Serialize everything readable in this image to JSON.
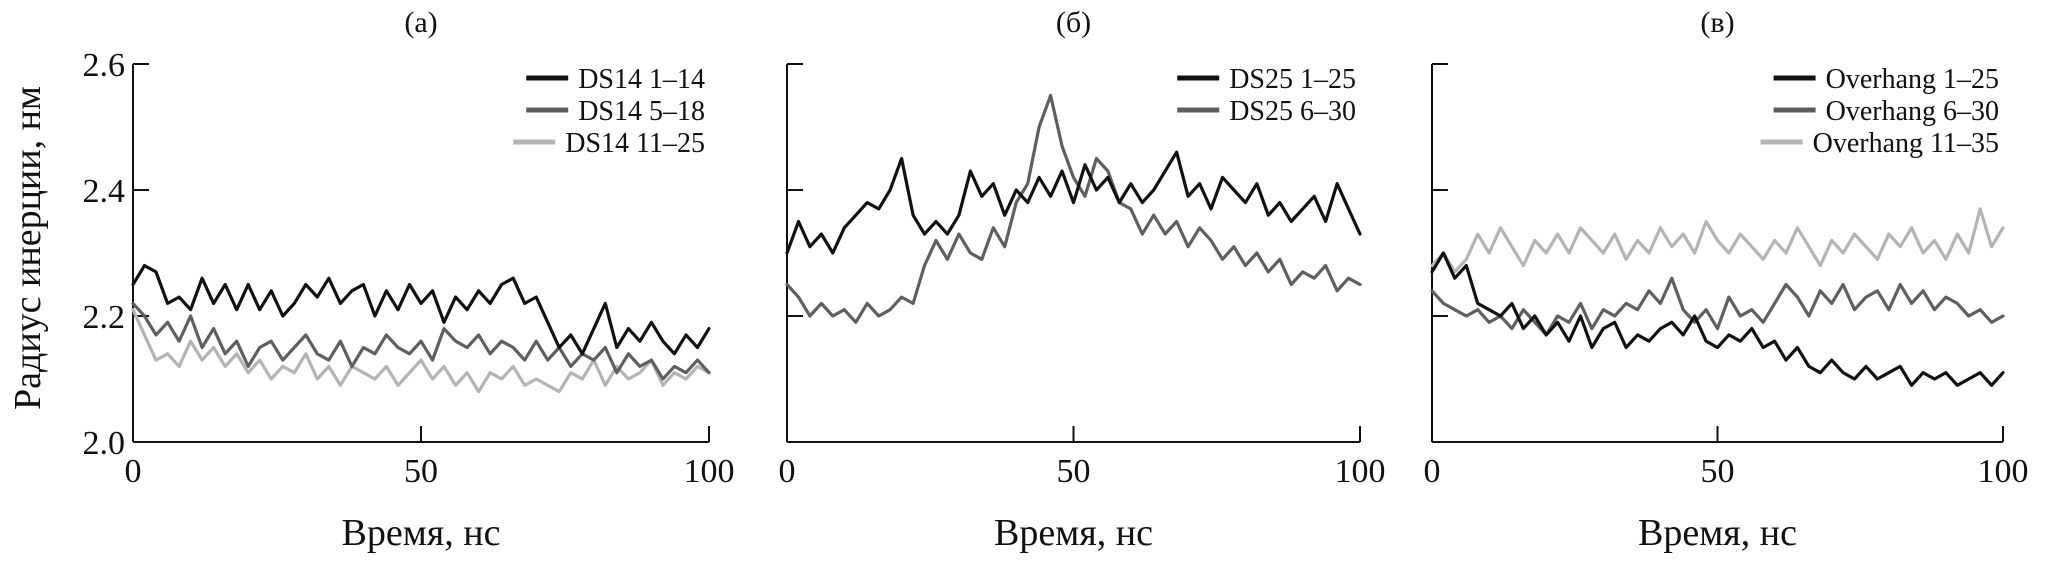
{
  "figure": {
    "ylabel": "Радиус инерции, нм",
    "xlabel": "Время, нс"
  },
  "chart_data": [
    {
      "type": "line",
      "panel_label": "(а)",
      "xlabel": "Время, нс",
      "ylabel": "Радиус инерции, нм",
      "xlim": [
        0,
        100
      ],
      "ylim": [
        2.0,
        2.6
      ],
      "xticks": [
        0,
        50,
        100
      ],
      "yticks": [
        2.0,
        2.2,
        2.4,
        2.6
      ],
      "show_ytick_labels": true,
      "grid": false,
      "legend_position": "top-right",
      "series": [
        {
          "name": "DS14 1–14",
          "color": "#111111",
          "x": [
            0,
            2,
            4,
            6,
            8,
            10,
            12,
            14,
            16,
            18,
            20,
            22,
            24,
            26,
            28,
            30,
            32,
            34,
            36,
            38,
            40,
            42,
            44,
            46,
            48,
            50,
            52,
            54,
            56,
            58,
            60,
            62,
            64,
            66,
            68,
            70,
            72,
            74,
            76,
            78,
            80,
            82,
            84,
            86,
            88,
            90,
            92,
            94,
            96,
            98,
            100
          ],
          "y": [
            2.25,
            2.28,
            2.27,
            2.22,
            2.23,
            2.21,
            2.26,
            2.22,
            2.25,
            2.21,
            2.25,
            2.21,
            2.24,
            2.2,
            2.22,
            2.25,
            2.23,
            2.26,
            2.22,
            2.24,
            2.25,
            2.2,
            2.24,
            2.21,
            2.25,
            2.22,
            2.24,
            2.19,
            2.23,
            2.21,
            2.24,
            2.22,
            2.25,
            2.26,
            2.22,
            2.23,
            2.19,
            2.15,
            2.17,
            2.14,
            2.18,
            2.22,
            2.15,
            2.18,
            2.16,
            2.19,
            2.16,
            2.14,
            2.17,
            2.15,
            2.18
          ]
        },
        {
          "name": "DS14 5–18",
          "color": "#5f5f5f",
          "x": [
            0,
            2,
            4,
            6,
            8,
            10,
            12,
            14,
            16,
            18,
            20,
            22,
            24,
            26,
            28,
            30,
            32,
            34,
            36,
            38,
            40,
            42,
            44,
            46,
            48,
            50,
            52,
            54,
            56,
            58,
            60,
            62,
            64,
            66,
            68,
            70,
            72,
            74,
            76,
            78,
            80,
            82,
            84,
            86,
            88,
            90,
            92,
            94,
            96,
            98,
            100
          ],
          "y": [
            2.22,
            2.2,
            2.17,
            2.19,
            2.16,
            2.2,
            2.15,
            2.18,
            2.14,
            2.16,
            2.12,
            2.15,
            2.16,
            2.13,
            2.15,
            2.17,
            2.14,
            2.13,
            2.16,
            2.12,
            2.15,
            2.14,
            2.17,
            2.15,
            2.14,
            2.16,
            2.13,
            2.18,
            2.16,
            2.15,
            2.17,
            2.14,
            2.16,
            2.15,
            2.13,
            2.16,
            2.13,
            2.15,
            2.12,
            2.14,
            2.13,
            2.15,
            2.11,
            2.14,
            2.12,
            2.13,
            2.1,
            2.12,
            2.11,
            2.13,
            2.11
          ]
        },
        {
          "name": "DS14 11–25",
          "color": "#b4b4b4",
          "x": [
            0,
            2,
            4,
            6,
            8,
            10,
            12,
            14,
            16,
            18,
            20,
            22,
            24,
            26,
            28,
            30,
            32,
            34,
            36,
            38,
            40,
            42,
            44,
            46,
            48,
            50,
            52,
            54,
            56,
            58,
            60,
            62,
            64,
            66,
            68,
            70,
            72,
            74,
            76,
            78,
            80,
            82,
            84,
            86,
            88,
            90,
            92,
            94,
            96,
            98,
            100
          ],
          "y": [
            2.21,
            2.17,
            2.13,
            2.14,
            2.12,
            2.16,
            2.13,
            2.15,
            2.12,
            2.14,
            2.11,
            2.13,
            2.1,
            2.12,
            2.11,
            2.14,
            2.1,
            2.12,
            2.09,
            2.12,
            2.11,
            2.1,
            2.12,
            2.09,
            2.11,
            2.13,
            2.1,
            2.12,
            2.09,
            2.11,
            2.08,
            2.11,
            2.1,
            2.12,
            2.09,
            2.1,
            2.09,
            2.08,
            2.11,
            2.1,
            2.13,
            2.09,
            2.12,
            2.1,
            2.11,
            2.13,
            2.09,
            2.11,
            2.1,
            2.12,
            2.11
          ]
        }
      ]
    },
    {
      "type": "line",
      "panel_label": "(б)",
      "xlabel": "Время, нс",
      "xlim": [
        0,
        100
      ],
      "ylim": [
        2.0,
        2.6
      ],
      "xticks": [
        0,
        50,
        100
      ],
      "yticks": [
        2.0,
        2.2,
        2.4,
        2.6
      ],
      "show_ytick_labels": false,
      "grid": false,
      "legend_position": "top-right",
      "series": [
        {
          "name": "DS25 1–25",
          "color": "#111111",
          "x": [
            0,
            2,
            4,
            6,
            8,
            10,
            12,
            14,
            16,
            18,
            20,
            22,
            24,
            26,
            28,
            30,
            32,
            34,
            36,
            38,
            40,
            42,
            44,
            46,
            48,
            50,
            52,
            54,
            56,
            58,
            60,
            62,
            64,
            66,
            68,
            70,
            72,
            74,
            76,
            78,
            80,
            82,
            84,
            86,
            88,
            90,
            92,
            94,
            96,
            98,
            100
          ],
          "y": [
            2.3,
            2.35,
            2.31,
            2.33,
            2.3,
            2.34,
            2.36,
            2.38,
            2.37,
            2.4,
            2.45,
            2.36,
            2.33,
            2.35,
            2.33,
            2.36,
            2.43,
            2.39,
            2.41,
            2.36,
            2.4,
            2.38,
            2.42,
            2.39,
            2.43,
            2.38,
            2.44,
            2.4,
            2.42,
            2.38,
            2.41,
            2.38,
            2.4,
            2.43,
            2.46,
            2.39,
            2.41,
            2.37,
            2.42,
            2.4,
            2.38,
            2.41,
            2.36,
            2.38,
            2.35,
            2.37,
            2.39,
            2.35,
            2.41,
            2.37,
            2.33
          ]
        },
        {
          "name": "DS25 6–30",
          "color": "#5f5f5f",
          "x": [
            0,
            2,
            4,
            6,
            8,
            10,
            12,
            14,
            16,
            18,
            20,
            22,
            24,
            26,
            28,
            30,
            32,
            34,
            36,
            38,
            40,
            42,
            44,
            46,
            48,
            50,
            52,
            54,
            56,
            58,
            60,
            62,
            64,
            66,
            68,
            70,
            72,
            74,
            76,
            78,
            80,
            82,
            84,
            86,
            88,
            90,
            92,
            94,
            96,
            98,
            100
          ],
          "y": [
            2.25,
            2.23,
            2.2,
            2.22,
            2.2,
            2.21,
            2.19,
            2.22,
            2.2,
            2.21,
            2.23,
            2.22,
            2.28,
            2.32,
            2.29,
            2.33,
            2.3,
            2.29,
            2.34,
            2.31,
            2.38,
            2.41,
            2.5,
            2.55,
            2.47,
            2.42,
            2.39,
            2.45,
            2.43,
            2.38,
            2.37,
            2.33,
            2.36,
            2.33,
            2.35,
            2.31,
            2.34,
            2.32,
            2.29,
            2.31,
            2.28,
            2.3,
            2.27,
            2.29,
            2.25,
            2.27,
            2.26,
            2.28,
            2.24,
            2.26,
            2.25
          ]
        }
      ]
    },
    {
      "type": "line",
      "panel_label": "(в)",
      "xlabel": "Время, нс",
      "xlim": [
        0,
        100
      ],
      "ylim": [
        2.0,
        2.6
      ],
      "xticks": [
        0,
        50,
        100
      ],
      "yticks": [
        2.0,
        2.2,
        2.4,
        2.6
      ],
      "show_ytick_labels": false,
      "grid": false,
      "legend_position": "top-right",
      "series": [
        {
          "name": "Overhang 1–25",
          "color": "#111111",
          "x": [
            0,
            2,
            4,
            6,
            8,
            10,
            12,
            14,
            16,
            18,
            20,
            22,
            24,
            26,
            28,
            30,
            32,
            34,
            36,
            38,
            40,
            42,
            44,
            46,
            48,
            50,
            52,
            54,
            56,
            58,
            60,
            62,
            64,
            66,
            68,
            70,
            72,
            74,
            76,
            78,
            80,
            82,
            84,
            86,
            88,
            90,
            92,
            94,
            96,
            98,
            100
          ],
          "y": [
            2.27,
            2.3,
            2.26,
            2.28,
            2.22,
            2.21,
            2.2,
            2.22,
            2.18,
            2.2,
            2.17,
            2.19,
            2.16,
            2.2,
            2.15,
            2.18,
            2.19,
            2.15,
            2.17,
            2.16,
            2.18,
            2.19,
            2.17,
            2.2,
            2.16,
            2.15,
            2.17,
            2.16,
            2.18,
            2.15,
            2.16,
            2.13,
            2.15,
            2.12,
            2.11,
            2.13,
            2.11,
            2.1,
            2.12,
            2.1,
            2.11,
            2.12,
            2.09,
            2.11,
            2.1,
            2.11,
            2.09,
            2.1,
            2.11,
            2.09,
            2.11
          ]
        },
        {
          "name": "Overhang 6–30",
          "color": "#5f5f5f",
          "x": [
            0,
            2,
            4,
            6,
            8,
            10,
            12,
            14,
            16,
            18,
            20,
            22,
            24,
            26,
            28,
            30,
            32,
            34,
            36,
            38,
            40,
            42,
            44,
            46,
            48,
            50,
            52,
            54,
            56,
            58,
            60,
            62,
            64,
            66,
            68,
            70,
            72,
            74,
            76,
            78,
            80,
            82,
            84,
            86,
            88,
            90,
            92,
            94,
            96,
            98,
            100
          ],
          "y": [
            2.24,
            2.22,
            2.21,
            2.2,
            2.21,
            2.19,
            2.2,
            2.18,
            2.21,
            2.19,
            2.17,
            2.2,
            2.19,
            2.22,
            2.18,
            2.21,
            2.2,
            2.22,
            2.21,
            2.24,
            2.22,
            2.26,
            2.21,
            2.19,
            2.21,
            2.18,
            2.23,
            2.2,
            2.21,
            2.19,
            2.22,
            2.25,
            2.23,
            2.2,
            2.24,
            2.22,
            2.25,
            2.21,
            2.23,
            2.24,
            2.21,
            2.25,
            2.22,
            2.24,
            2.21,
            2.23,
            2.22,
            2.2,
            2.21,
            2.19,
            2.2
          ]
        },
        {
          "name": "Overhang 11–35",
          "color": "#b4b4b4",
          "x": [
            0,
            2,
            4,
            6,
            8,
            10,
            12,
            14,
            16,
            18,
            20,
            22,
            24,
            26,
            28,
            30,
            32,
            34,
            36,
            38,
            40,
            42,
            44,
            46,
            48,
            50,
            52,
            54,
            56,
            58,
            60,
            62,
            64,
            66,
            68,
            70,
            72,
            74,
            76,
            78,
            80,
            82,
            84,
            86,
            88,
            90,
            92,
            94,
            96,
            98,
            100
          ],
          "y": [
            2.28,
            2.3,
            2.27,
            2.29,
            2.33,
            2.3,
            2.34,
            2.31,
            2.28,
            2.32,
            2.3,
            2.33,
            2.3,
            2.34,
            2.32,
            2.3,
            2.33,
            2.29,
            2.32,
            2.3,
            2.34,
            2.31,
            2.33,
            2.3,
            2.35,
            2.32,
            2.3,
            2.33,
            2.31,
            2.29,
            2.32,
            2.3,
            2.34,
            2.31,
            2.28,
            2.32,
            2.3,
            2.33,
            2.31,
            2.29,
            2.33,
            2.31,
            2.34,
            2.3,
            2.32,
            2.29,
            2.33,
            2.3,
            2.37,
            2.31,
            2.34
          ]
        }
      ]
    }
  ]
}
